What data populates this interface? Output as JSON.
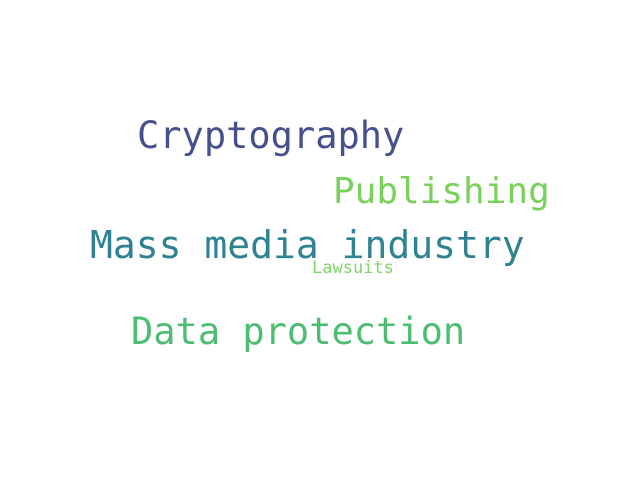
{
  "wordcloud": {
    "words": [
      {
        "text": "Cryptography",
        "color": "#46508c"
      },
      {
        "text": "Publishing",
        "color": "#79d159"
      },
      {
        "text": "Mass media industry",
        "color": "#2f8391"
      },
      {
        "text": "Lawsuits",
        "color": "#84d46a"
      },
      {
        "text": "Data protection",
        "color": "#4dbd74"
      }
    ]
  }
}
